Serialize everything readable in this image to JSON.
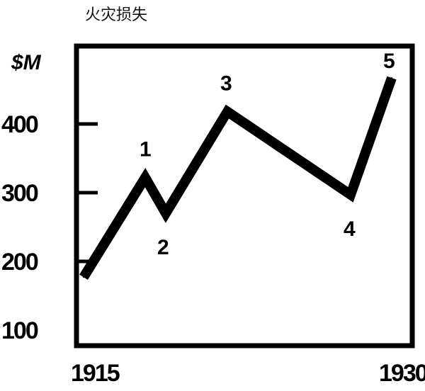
{
  "chart_data": {
    "type": "line",
    "title": "火灾损失",
    "ylabel": "$M",
    "xlabel": "",
    "y_ticks": [
      "400",
      "300",
      "200",
      "100"
    ],
    "y_tick_values": [
      400,
      300,
      200,
      100
    ],
    "x_ticks": [
      "1915",
      "1930"
    ],
    "x_tick_values": [
      1915,
      1930
    ],
    "ylim": [
      100,
      480
    ],
    "xlim": [
      1915,
      1930
    ],
    "grid": false,
    "color": "#000000",
    "points": [
      {
        "x": 1915,
        "y": 177,
        "label": ""
      },
      {
        "x": 1918,
        "y": 322,
        "label": "1"
      },
      {
        "x": 1919,
        "y": 270,
        "label": "2"
      },
      {
        "x": 1922,
        "y": 418,
        "label": "3"
      },
      {
        "x": 1928,
        "y": 297,
        "label": "4"
      },
      {
        "x": 1930,
        "y": 467,
        "label": "5"
      }
    ]
  }
}
